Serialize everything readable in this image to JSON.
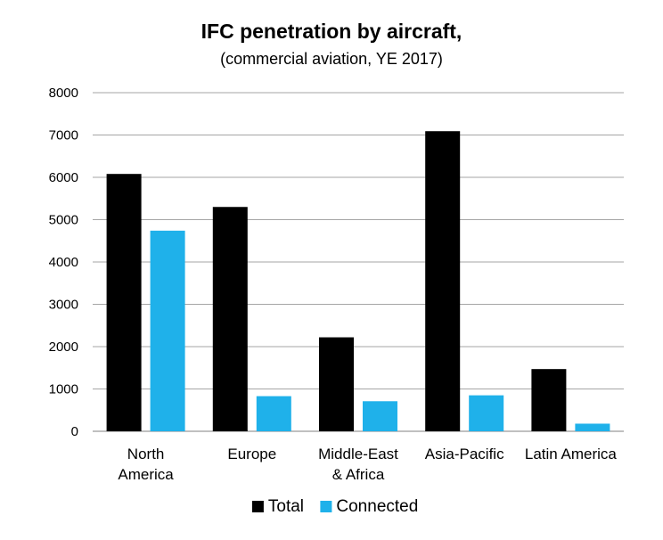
{
  "chart_data": {
    "type": "bar",
    "title": "IFC penetration by aircraft,",
    "subtitle": "(commercial aviation, YE 2017)",
    "categories": [
      [
        "North",
        "America"
      ],
      [
        "Europe"
      ],
      [
        "Middle-East",
        "& Africa"
      ],
      [
        "Asia-Pacific"
      ],
      [
        "Latin America"
      ]
    ],
    "series": [
      {
        "name": "Total",
        "color": "#000000",
        "values": [
          6080,
          5300,
          2220,
          7090,
          1470
        ]
      },
      {
        "name": "Connected",
        "color": "#1fb1ea",
        "values": [
          4740,
          830,
          710,
          850,
          180
        ]
      }
    ],
    "ylim": [
      0,
      8000
    ],
    "yticks": [
      0,
      1000,
      2000,
      3000,
      4000,
      5000,
      6000,
      7000,
      8000
    ],
    "grid": true,
    "legend_position": "bottom-center"
  }
}
